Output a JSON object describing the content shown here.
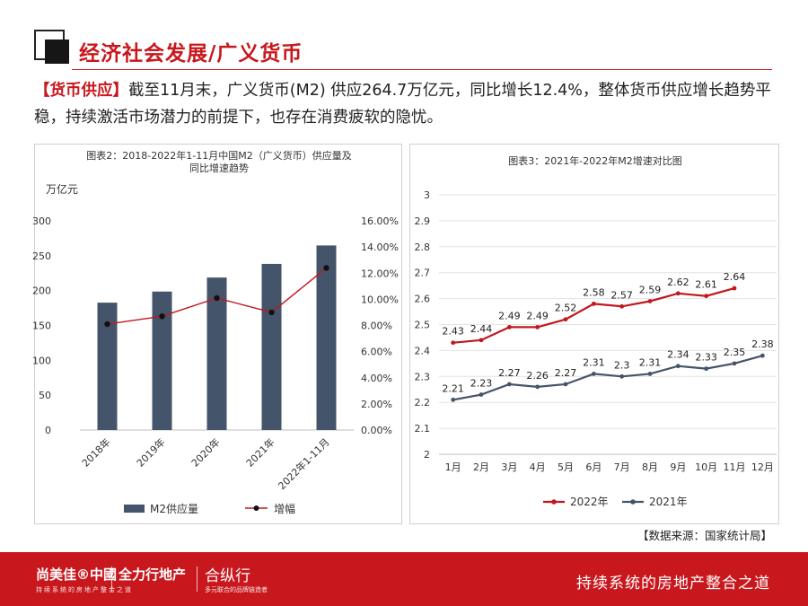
{
  "header": {
    "title": "经济社会发展/广义货币"
  },
  "intro": {
    "tag": "【货币供应】",
    "text": "截至11月末，广义货币(M2) 供应264.7万亿元，同比增长12.4%，整体货币供应增长趋势平稳，持续激活市场潜力的前提下，也存在消费疲软的隐忧。"
  },
  "source": "【数据来源：国家统计局】",
  "footer": {
    "brand1": "尚美佳®中國",
    "brand1_sub": "持续系统的房地产整合之道",
    "brand2": "全力行地产",
    "brand3": "合纵行",
    "brand3_sub": "多元联合的品牌链造者",
    "slogan": "持续系统的房地产整合之道"
  },
  "colors": {
    "accent": "#c8181e",
    "bar": "#44546a",
    "line2022": "#c0181e",
    "line2021": "#44546a"
  },
  "chart_data": [
    {
      "type": "bar",
      "title_lines": [
        "图表2：2018-2022年1-11月中国M2（广义货币）供应量及",
        "同比增速趋势"
      ],
      "y_unit": "万亿元",
      "categories": [
        "2018年",
        "2019年",
        "2020年",
        "2021年",
        "2022年1-11月"
      ],
      "series": [
        {
          "name": "M2供应量",
          "type": "bar",
          "axis": "left",
          "values": [
            182.7,
            198.6,
            218.7,
            238.3,
            264.7
          ]
        },
        {
          "name": "增幅",
          "type": "line",
          "axis": "right",
          "values": [
            8.1,
            8.7,
            10.1,
            9.0,
            12.4
          ]
        }
      ],
      "left_axis": {
        "min": 0,
        "max": 300,
        "ticks": [
          "0",
          "50",
          "100",
          "150",
          "200",
          "250",
          "300"
        ]
      },
      "right_axis": {
        "min": 0,
        "max": 16,
        "ticks": [
          "0.00%",
          "2.00%",
          "4.00%",
          "6.00%",
          "8.00%",
          "10.00%",
          "12.00%",
          "14.00%",
          "16.00%"
        ]
      },
      "legend_position": "bottom"
    },
    {
      "type": "line",
      "title": "图表3：2021年-2022年M2增速对比图",
      "categories": [
        "1月",
        "2月",
        "3月",
        "4月",
        "5月",
        "6月",
        "7月",
        "8月",
        "9月",
        "10月",
        "11月",
        "12月"
      ],
      "series": [
        {
          "name": "2022年",
          "values": [
            2.43,
            2.44,
            2.49,
            2.49,
            2.52,
            2.58,
            2.57,
            2.59,
            2.62,
            2.61,
            2.64,
            null
          ],
          "labels": [
            "2.43",
            "2.44",
            "2.49",
            "2.49",
            "2.52",
            "2.58",
            "2.57",
            "2.59",
            "2.62",
            "2.61",
            "2.64",
            ""
          ]
        },
        {
          "name": "2021年",
          "values": [
            2.21,
            2.23,
            2.27,
            2.26,
            2.27,
            2.31,
            2.3,
            2.31,
            2.34,
            2.33,
            2.35,
            2.38
          ],
          "labels": [
            "2.21",
            "2.23",
            "2.27",
            "2.26",
            "2.27",
            "2.31",
            "2.3",
            "2.31",
            "2.34",
            "2.33",
            "2.35",
            "2.38"
          ]
        }
      ],
      "y_axis": {
        "min": 2,
        "max": 3,
        "ticks": [
          "2",
          "2.1",
          "2.2",
          "2.3",
          "2.4",
          "2.5",
          "2.6",
          "2.7",
          "2.8",
          "2.9",
          "3"
        ]
      },
      "gridlines": true,
      "legend_position": "bottom"
    }
  ]
}
